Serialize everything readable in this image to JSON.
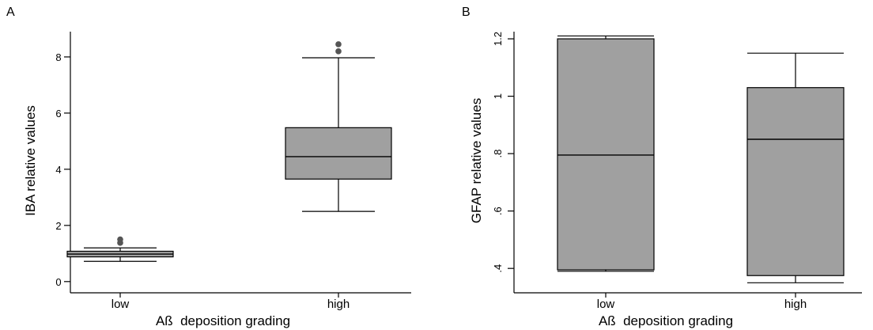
{
  "chart_data": [
    {
      "type": "box",
      "panel_label": "A",
      "categories": [
        "low",
        "high"
      ],
      "xlabel": "Aß  deposition grading",
      "ylabel": "IBA relative values",
      "ylim": [
        -0.4,
        8.9
      ],
      "yticks": [
        {
          "value": 0,
          "label": "0"
        },
        {
          "value": 2,
          "label": "2"
        },
        {
          "value": 4,
          "label": "4"
        },
        {
          "value": 6,
          "label": "6"
        },
        {
          "value": 8,
          "label": "8"
        }
      ],
      "boxes": [
        {
          "category": "low",
          "whisker_low": 0.72,
          "q1": 0.88,
          "median": 0.98,
          "q3": 1.08,
          "whisker_high": 1.2,
          "outliers": [
            1.38,
            1.5
          ]
        },
        {
          "category": "high",
          "whisker_low": 2.5,
          "q1": 3.65,
          "median": 4.45,
          "q3": 5.48,
          "whisker_high": 7.97,
          "outliers": [
            8.2,
            8.45
          ]
        }
      ],
      "box_color": "#a0a0a0",
      "grid": false
    },
    {
      "type": "box",
      "panel_label": "B",
      "categories": [
        "low",
        "high"
      ],
      "xlabel": "Aß  deposition grading",
      "ylabel": "GFAP relative values",
      "ylim": [
        0.315,
        1.225
      ],
      "yticks": [
        {
          "value": 0.4,
          "label": ".4"
        },
        {
          "value": 0.6,
          "label": ".6"
        },
        {
          "value": 0.8,
          "label": ".8"
        },
        {
          "value": 1.0,
          "label": "1"
        },
        {
          "value": 1.2,
          "label": "1.2"
        }
      ],
      "boxes": [
        {
          "category": "low",
          "whisker_low": 0.39,
          "q1": 0.395,
          "median": 0.795,
          "q3": 1.2,
          "whisker_high": 1.21,
          "outliers": []
        },
        {
          "category": "high",
          "whisker_low": 0.35,
          "q1": 0.375,
          "median": 0.85,
          "q3": 1.03,
          "whisker_high": 1.15,
          "outliers": []
        }
      ],
      "box_color": "#a0a0a0",
      "grid": false
    }
  ]
}
